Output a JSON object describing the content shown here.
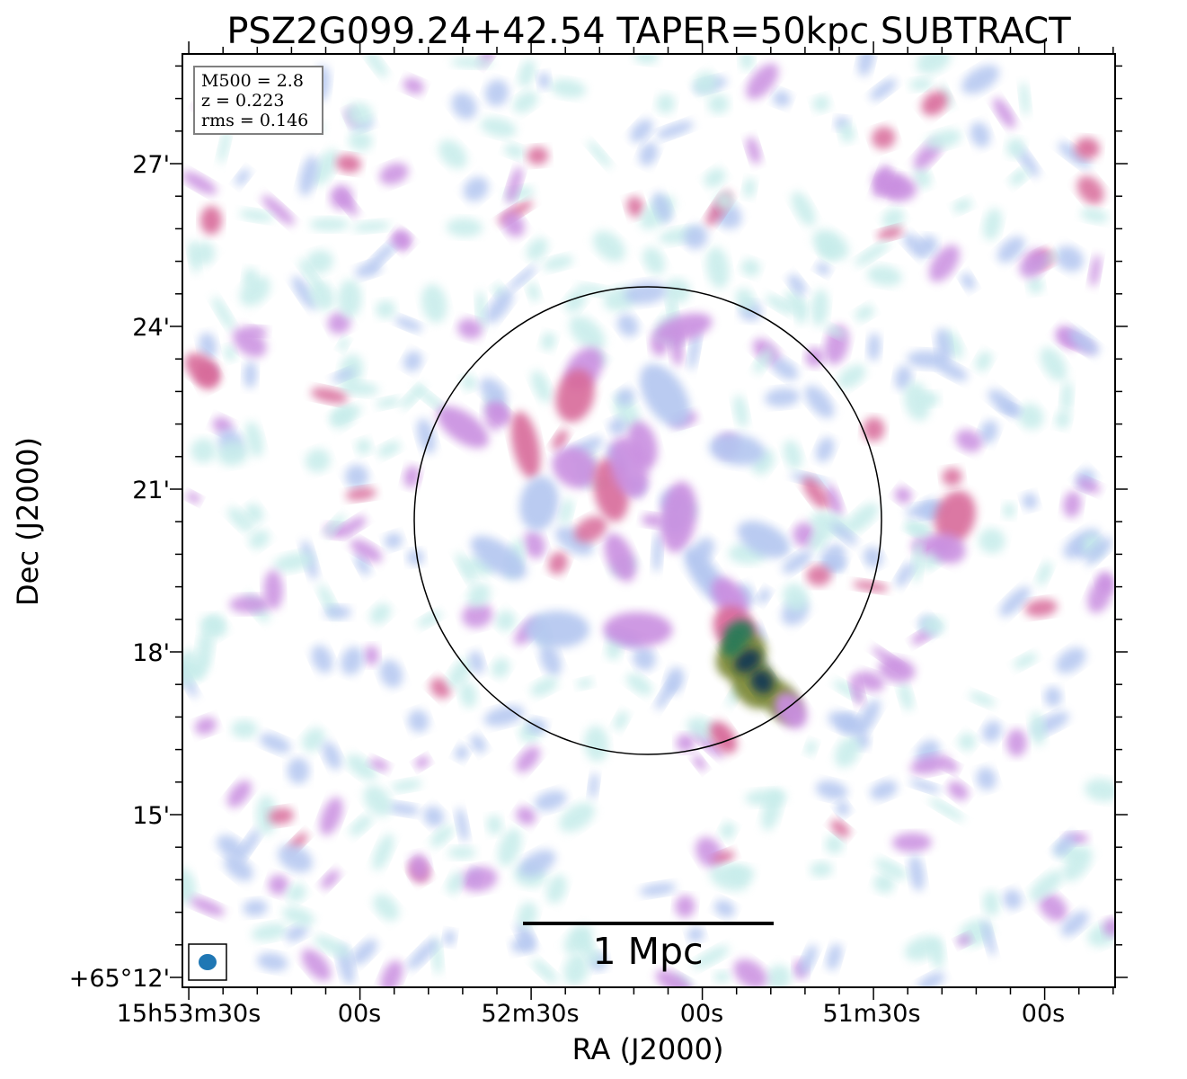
{
  "chart_data": {
    "type": "heatmap",
    "title": "PSZ2G099.24+42.54 TAPER=50kpc SUBTRACT",
    "xlabel": "RA (J2000)",
    "ylabel": "Dec (J2000)",
    "x_ticks": [
      "15h53m30s",
      "00s",
      "52m30s",
      "00s",
      "51m30s",
      "00s"
    ],
    "y_ticks": [
      "+65°12'",
      "15'",
      "18'",
      "21'",
      "24'",
      "27'"
    ],
    "info_box": [
      "M500 = 2.8",
      "z = 0.223",
      "rms = 0.146"
    ],
    "scale_bar_label": "1 Mpc",
    "grid": false,
    "colormap": [
      "#c6ecea",
      "#b3c6f0",
      "#c98ee0",
      "#d86b9a",
      "#7e8a3a",
      "#2a7a58",
      "#143a52"
    ],
    "beam_color": "#1f77b4",
    "overlays": [
      "circle",
      "scale-bar",
      "beam-ellipse"
    ]
  }
}
